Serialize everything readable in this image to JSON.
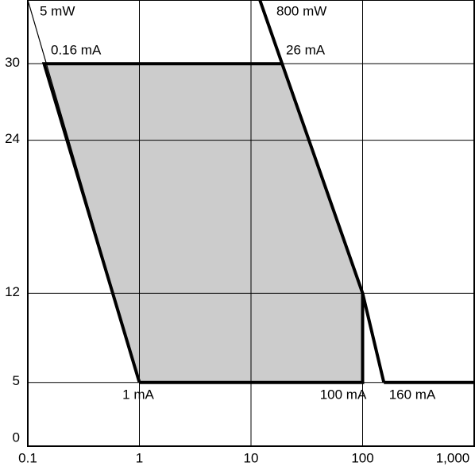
{
  "chart_data": {
    "type": "region",
    "xlog": true,
    "xlim": [
      0.1,
      1000
    ],
    "ylim": [
      0,
      35
    ],
    "xticks": [
      0.1,
      1,
      10,
      100,
      {
        "value": 1000,
        "label": "1,000"
      }
    ],
    "yticks": [
      0,
      5,
      12,
      24,
      30
    ],
    "grid": true,
    "region": {
      "color": "#cccccc",
      "x": [
        0.14,
        19,
        100,
        100,
        1
      ],
      "y": [
        30,
        30,
        12,
        5,
        5
      ]
    },
    "lines": [
      {
        "color": "#000000",
        "x": [
          0.1,
          1
        ],
        "y": [
          35,
          5
        ]
      },
      {
        "color": "#000000",
        "x": [
          19,
          0.14,
          1
        ],
        "y": [
          30,
          30,
          5
        ]
      },
      {
        "color": "#000000",
        "x": [
          12,
          19,
          100,
          155
        ],
        "y": [
          35,
          30,
          12,
          5
        ]
      },
      {
        "color": "#000000",
        "x": [
          1,
          100,
          100
        ],
        "y": [
          5,
          5,
          12
        ]
      },
      {
        "color": "#000000",
        "x": [
          155,
          1000
        ],
        "y": [
          5,
          5
        ]
      }
    ],
    "annotations": [
      "5 mW",
      "800 mW",
      "0.16 mA",
      "26 mA",
      "1 mA",
      "100 mA",
      "160 mA"
    ]
  }
}
